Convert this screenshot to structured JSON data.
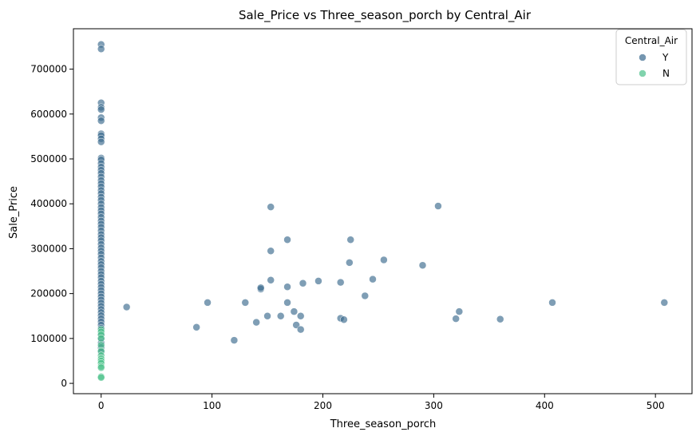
{
  "chart_data": {
    "type": "scatter",
    "title": "Sale_Price vs Three_season_porch by Central_Air",
    "xlabel": "Three_season_porch",
    "ylabel": "Sale_Price",
    "xlim": [
      -25,
      533
    ],
    "ylim": [
      -23000,
      790000
    ],
    "x_ticks": [
      0,
      100,
      200,
      300,
      400,
      500
    ],
    "y_ticks": [
      0,
      100000,
      200000,
      300000,
      400000,
      500000,
      600000,
      700000
    ],
    "x_tick_labels": [
      "0",
      "100",
      "200",
      "300",
      "400",
      "500"
    ],
    "y_tick_labels": [
      "0",
      "100000",
      "200000",
      "300000",
      "400000",
      "500000",
      "600000",
      "700000"
    ],
    "grid": false,
    "legend": {
      "title": "Central_Air",
      "placement": "top-right"
    },
    "series": [
      {
        "name": "Y",
        "color": "#3b6a8e",
        "points": [
          [
            0,
            755000
          ],
          [
            0,
            745000
          ],
          [
            0,
            625000
          ],
          [
            0,
            615000
          ],
          [
            0,
            610000
          ],
          [
            0,
            592000
          ],
          [
            0,
            585000
          ],
          [
            0,
            556000
          ],
          [
            0,
            552000
          ],
          [
            0,
            545000
          ],
          [
            0,
            538000
          ],
          [
            0,
            502000
          ],
          [
            0,
            498000
          ],
          [
            0,
            490000
          ],
          [
            0,
            482000
          ],
          [
            0,
            475000
          ],
          [
            0,
            468000
          ],
          [
            0,
            460000
          ],
          [
            0,
            452000
          ],
          [
            0,
            445000
          ],
          [
            0,
            438000
          ],
          [
            0,
            430000
          ],
          [
            0,
            423000
          ],
          [
            0,
            415000
          ],
          [
            0,
            408000
          ],
          [
            0,
            400000
          ],
          [
            0,
            392000
          ],
          [
            0,
            385000
          ],
          [
            0,
            378000
          ],
          [
            0,
            370000
          ],
          [
            0,
            362000
          ],
          [
            0,
            355000
          ],
          [
            0,
            348000
          ],
          [
            0,
            340000
          ],
          [
            0,
            332000
          ],
          [
            0,
            325000
          ],
          [
            0,
            318000
          ],
          [
            0,
            310000
          ],
          [
            0,
            302000
          ],
          [
            0,
            295000
          ],
          [
            0,
            288000
          ],
          [
            0,
            280000
          ],
          [
            0,
            272000
          ],
          [
            0,
            265000
          ],
          [
            0,
            258000
          ],
          [
            0,
            250000
          ],
          [
            0,
            243000
          ],
          [
            0,
            236000
          ],
          [
            0,
            228000
          ],
          [
            0,
            221000
          ],
          [
            0,
            214000
          ],
          [
            0,
            207000
          ],
          [
            0,
            200000
          ],
          [
            0,
            193000
          ],
          [
            0,
            186000
          ],
          [
            0,
            179000
          ],
          [
            0,
            172000
          ],
          [
            0,
            165000
          ],
          [
            0,
            158000
          ],
          [
            0,
            151000
          ],
          [
            0,
            144000
          ],
          [
            0,
            137000
          ],
          [
            0,
            130000
          ],
          [
            0,
            123000
          ],
          [
            0,
            110000
          ],
          [
            0,
            100000
          ],
          [
            0,
            90000
          ],
          [
            0,
            80000
          ],
          [
            0,
            70000
          ],
          [
            23,
            170000
          ],
          [
            86,
            125000
          ],
          [
            96,
            180000
          ],
          [
            120,
            96000
          ],
          [
            130,
            180000
          ],
          [
            140,
            136000
          ],
          [
            144,
            210000
          ],
          [
            144,
            213000
          ],
          [
            150,
            150000
          ],
          [
            153,
            230000
          ],
          [
            153,
            295000
          ],
          [
            153,
            393000
          ],
          [
            162,
            150000
          ],
          [
            168,
            180000
          ],
          [
            168,
            215000
          ],
          [
            168,
            320000
          ],
          [
            174,
            160000
          ],
          [
            176,
            130000
          ],
          [
            180,
            120000
          ],
          [
            180,
            150000
          ],
          [
            182,
            223000
          ],
          [
            196,
            228000
          ],
          [
            216,
            145000
          ],
          [
            216,
            225000
          ],
          [
            219,
            142000
          ],
          [
            224,
            269000
          ],
          [
            225,
            320000
          ],
          [
            238,
            195000
          ],
          [
            245,
            232000
          ],
          [
            255,
            275000
          ],
          [
            290,
            263000
          ],
          [
            304,
            395000
          ],
          [
            320,
            144000
          ],
          [
            323,
            160000
          ],
          [
            360,
            143000
          ],
          [
            407,
            180000
          ],
          [
            508,
            180000
          ]
        ]
      },
      {
        "name": "N",
        "color": "#4cc18a",
        "points": [
          [
            0,
            120000
          ],
          [
            0,
            115000
          ],
          [
            0,
            108000
          ],
          [
            0,
            100000
          ],
          [
            0,
            85000
          ],
          [
            0,
            72000
          ],
          [
            0,
            62000
          ],
          [
            0,
            55000
          ],
          [
            0,
            50000
          ],
          [
            0,
            45000
          ],
          [
            0,
            38000
          ],
          [
            0,
            35000
          ],
          [
            0,
            15000
          ],
          [
            0,
            13000
          ]
        ]
      }
    ]
  }
}
